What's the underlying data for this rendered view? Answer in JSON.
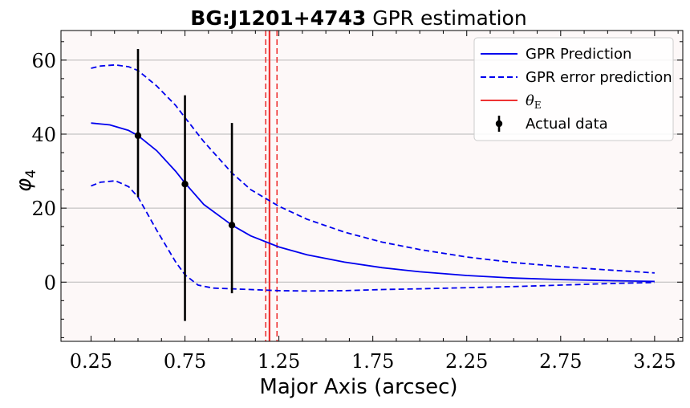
{
  "chart_data": {
    "type": "line",
    "title_bold": "BG:J1201+4743",
    "title_rest": " GPR estimation",
    "xlabel": "Major Axis (arcsec)",
    "ylabel_symbol": "φ",
    "ylabel_subscript": "4",
    "xlim": [
      0.09,
      3.4
    ],
    "ylim": [
      -16,
      68
    ],
    "xticks": [
      0.25,
      0.75,
      1.25,
      1.75,
      2.25,
      2.75,
      3.25
    ],
    "xtick_labels": [
      "0.25",
      "0.75",
      "1.25",
      "1.75",
      "2.25",
      "2.75",
      "3.25"
    ],
    "yticks": [
      0,
      20,
      40,
      60
    ],
    "ytick_labels": [
      "0",
      "20",
      "40",
      "60"
    ],
    "grid": "horizontal",
    "legend_position": "top-right",
    "background": "#fdf8f8",
    "series": [
      {
        "name": "GPR Prediction",
        "style": "solid",
        "color": "#0000ee",
        "x": [
          0.25,
          0.35,
          0.45,
          0.5,
          0.6,
          0.7,
          0.75,
          0.85,
          1.0,
          1.1,
          1.25,
          1.4,
          1.6,
          1.8,
          2.0,
          2.25,
          2.5,
          2.75,
          3.0,
          3.25
        ],
        "y": [
          43.0,
          42.5,
          41.0,
          39.6,
          35.5,
          30.0,
          26.8,
          21.0,
          15.4,
          12.5,
          9.5,
          7.4,
          5.4,
          3.9,
          2.8,
          1.8,
          1.1,
          0.7,
          0.4,
          0.2
        ]
      },
      {
        "name": "GPR error prediction",
        "style": "dashed",
        "color": "#0000ee",
        "x": [
          0.25,
          0.3,
          0.38,
          0.45,
          0.5,
          0.6,
          0.7,
          0.75,
          0.85,
          1.0,
          1.1,
          1.25,
          1.4,
          1.6,
          1.8,
          2.0,
          2.25,
          2.5,
          2.75,
          3.0,
          3.25
        ],
        "y": [
          57.8,
          58.4,
          58.7,
          58.2,
          57.2,
          53.0,
          47.8,
          44.5,
          38.0,
          29.5,
          25.0,
          20.5,
          17.0,
          13.5,
          10.8,
          8.8,
          6.8,
          5.3,
          4.2,
          3.3,
          2.5
        ]
      },
      {
        "name": "",
        "style": "dashed",
        "color": "#0000ee",
        "x": [
          0.25,
          0.3,
          0.38,
          0.45,
          0.5,
          0.6,
          0.7,
          0.75,
          0.82,
          0.9,
          1.0,
          1.1,
          1.25,
          1.4,
          1.6,
          1.8,
          2.0,
          2.25,
          2.5,
          2.75,
          3.0,
          3.25
        ],
        "y": [
          26.0,
          27.0,
          27.4,
          25.8,
          23.0,
          14.0,
          5.5,
          2.0,
          -0.8,
          -1.6,
          -1.8,
          -2.0,
          -2.3,
          -2.4,
          -2.3,
          -2.0,
          -1.8,
          -1.5,
          -1.2,
          -0.8,
          -0.4,
          -0.1
        ]
      }
    ],
    "errorbar_series": {
      "name": "Actual data",
      "color": "#000000",
      "points": [
        {
          "x": 0.5,
          "y": 39.6,
          "ylow": 23.0,
          "yhigh": 63.0
        },
        {
          "x": 0.75,
          "y": 26.5,
          "ylow": -10.5,
          "yhigh": 50.5
        },
        {
          "x": 1.0,
          "y": 15.4,
          "ylow": -3.0,
          "yhigh": 43.0
        }
      ]
    },
    "vlines": [
      {
        "name": "θ_E",
        "x": 1.2,
        "style": "solid",
        "color": "#ee3333"
      },
      {
        "name": "",
        "x": 1.18,
        "style": "dashed",
        "color": "#ee3333"
      },
      {
        "name": "",
        "x": 1.24,
        "style": "dashed",
        "color": "#ee3333"
      }
    ],
    "legend": [
      {
        "label": "GPR Prediction",
        "kind": "solid",
        "color": "#0000ee"
      },
      {
        "label": "GPR error prediction",
        "kind": "dashed",
        "color": "#0000ee"
      },
      {
        "label_symbol": "θ",
        "label_subscript": "E",
        "kind": "solid",
        "color": "#ee3333"
      },
      {
        "label": "Actual data",
        "kind": "errorbar",
        "color": "#000000"
      }
    ]
  }
}
